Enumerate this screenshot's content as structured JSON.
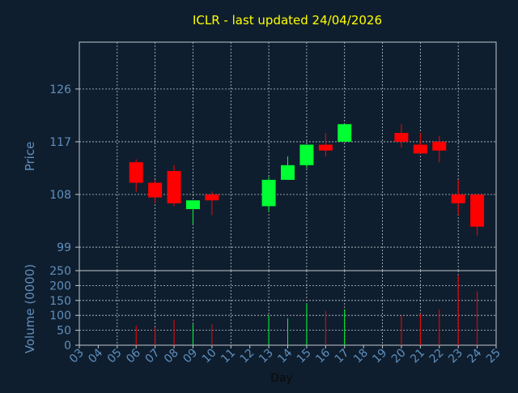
{
  "chart_data": {
    "type": "candlestick",
    "title": "ICLR - last updated 24/04/2026",
    "xlabel": "Day",
    "price_panel": {
      "ylabel": "Price",
      "ylim": [
        95,
        134
      ],
      "yticks": [
        99,
        108,
        117,
        126
      ]
    },
    "volume_panel": {
      "ylabel": "Volume (0000)",
      "ylim": [
        0,
        250
      ],
      "yticks": [
        0,
        50,
        100,
        150,
        200,
        250
      ]
    },
    "x_ticks": [
      "03",
      "04",
      "05",
      "06",
      "07",
      "08",
      "09",
      "10",
      "11",
      "12",
      "13",
      "14",
      "15",
      "16",
      "17",
      "18",
      "19",
      "20",
      "21",
      "22",
      "23",
      "24",
      "25"
    ],
    "grid": true,
    "colors": {
      "background": "#0f1e2e",
      "title": "#ffff00",
      "axis_text": "#5f8fbf",
      "frame": "#c0c8d0",
      "grid": "#c0c8d0",
      "up": "#00ff33",
      "down": "#ff0000"
    },
    "candles": [
      {
        "day": 6,
        "open": 113.5,
        "high": 114.0,
        "low": 108.5,
        "close": 110.0,
        "volume": 65
      },
      {
        "day": 7,
        "open": 110.0,
        "high": 110.5,
        "low": 106.5,
        "close": 107.5,
        "volume": 60
      },
      {
        "day": 8,
        "open": 112.0,
        "high": 113.0,
        "low": 106.0,
        "close": 106.5,
        "volume": 85
      },
      {
        "day": 9,
        "open": 105.5,
        "high": 107.0,
        "low": 103.0,
        "close": 107.0,
        "volume": 70
      },
      {
        "day": 10,
        "open": 108.0,
        "high": 108.5,
        "low": 104.5,
        "close": 107.0,
        "volume": 70
      },
      {
        "day": 13,
        "open": 106.0,
        "high": 111.0,
        "low": 105.0,
        "close": 110.5,
        "volume": 100
      },
      {
        "day": 14,
        "open": 110.5,
        "high": 114.5,
        "low": 110.5,
        "close": 113.0,
        "volume": 90
      },
      {
        "day": 15,
        "open": 113.0,
        "high": 116.5,
        "low": 112.5,
        "close": 116.5,
        "volume": 140
      },
      {
        "day": 16,
        "open": 116.5,
        "high": 118.5,
        "low": 114.5,
        "close": 115.5,
        "volume": 115
      },
      {
        "day": 17,
        "open": 117.0,
        "high": 120.0,
        "low": 117.0,
        "close": 120.0,
        "volume": 120
      },
      {
        "day": 20,
        "open": 118.5,
        "high": 120.0,
        "low": 116.0,
        "close": 117.0,
        "volume": 100
      },
      {
        "day": 21,
        "open": 116.5,
        "high": 118.5,
        "low": 115.0,
        "close": 115.0,
        "volume": 105
      },
      {
        "day": 22,
        "open": 117.0,
        "high": 118.0,
        "low": 113.5,
        "close": 115.5,
        "volume": 120
      },
      {
        "day": 23,
        "open": 108.0,
        "high": 110.5,
        "low": 104.5,
        "close": 106.5,
        "volume": 235
      },
      {
        "day": 24,
        "open": 108.0,
        "high": 108.0,
        "low": 101.0,
        "close": 102.5,
        "volume": 180
      }
    ]
  }
}
